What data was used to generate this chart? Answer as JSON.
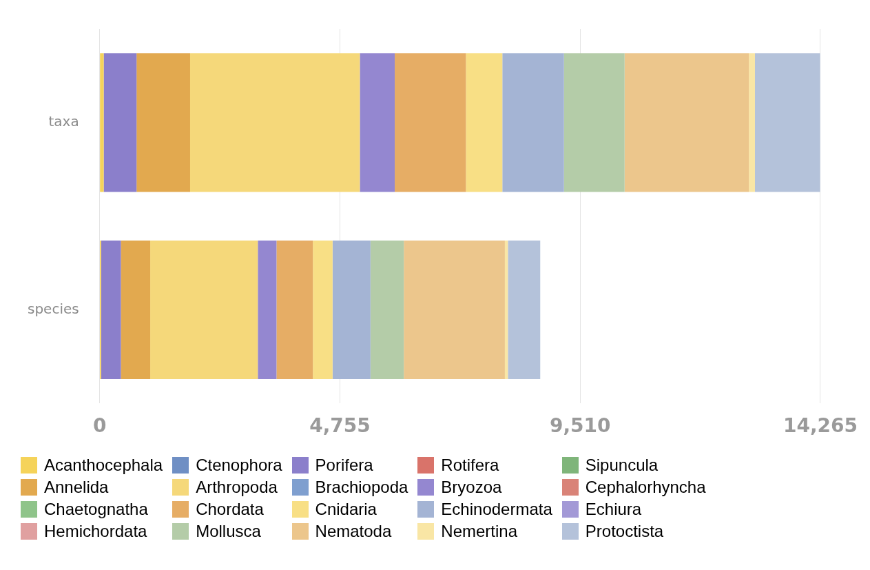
{
  "chart_data": {
    "type": "bar",
    "orientation": "horizontal",
    "stacked": true,
    "categories": [
      "taxa",
      "species"
    ],
    "xlim": [
      0,
      14265
    ],
    "xticks": [
      0,
      {
        "value": 4755,
        "label": "4,755"
      },
      {
        "value": 9510,
        "label": "9,510"
      },
      {
        "value": 14265,
        "label": "14,265"
      }
    ],
    "grid": "x",
    "legend": "bottom",
    "series": [
      {
        "name": "Acanthocephala",
        "color": "#f5d35a",
        "values": [
          80,
          30
        ]
      },
      {
        "name": "Ctenophora",
        "color": "#6f8fc4",
        "values": [
          0,
          0
        ]
      },
      {
        "name": "Porifera",
        "color": "#8b7fcb",
        "values": [
          650,
          390
        ]
      },
      {
        "name": "Rotifera",
        "color": "#d9736a",
        "values": [
          0,
          0
        ]
      },
      {
        "name": "Sipuncula",
        "color": "#7fb57a",
        "values": [
          0,
          0
        ]
      },
      {
        "name": "Annelida",
        "color": "#e2a94f",
        "values": [
          1060,
          580
        ]
      },
      {
        "name": "Arthropoda",
        "color": "#f5d87a",
        "values": [
          3360,
          2130
        ]
      },
      {
        "name": "Brachiopoda",
        "color": "#7f9fcf",
        "values": [
          0,
          0
        ]
      },
      {
        "name": "Bryozoa",
        "color": "#9487d0",
        "values": [
          690,
          370
        ]
      },
      {
        "name": "Cephalorhyncha",
        "color": "#d98378",
        "values": [
          0,
          0
        ]
      },
      {
        "name": "Chaetognatha",
        "color": "#8fc48a",
        "values": [
          0,
          0
        ]
      },
      {
        "name": "Chordata",
        "color": "#e6ad65",
        "values": [
          1410,
          720
        ]
      },
      {
        "name": "Cnidaria",
        "color": "#f8df85",
        "values": [
          720,
          390
        ]
      },
      {
        "name": "Echinodermata",
        "color": "#a4b4d4",
        "values": [
          1220,
          750
        ]
      },
      {
        "name": "Echiura",
        "color": "#a399d6",
        "values": [
          0,
          0
        ]
      },
      {
        "name": "Hemichordata",
        "color": "#e0a0a0",
        "values": [
          0,
          0
        ]
      },
      {
        "name": "Mollusca",
        "color": "#b4cca8",
        "values": [
          1200,
          660
        ]
      },
      {
        "name": "Nematoda",
        "color": "#ecc68c",
        "values": [
          2460,
          2000
        ]
      },
      {
        "name": "Nemertina",
        "color": "#f9e6a5",
        "values": [
          120,
          60
        ]
      },
      {
        "name": "Protoctista",
        "color": "#b4c2da",
        "values": [
          1290,
          640
        ]
      }
    ]
  }
}
